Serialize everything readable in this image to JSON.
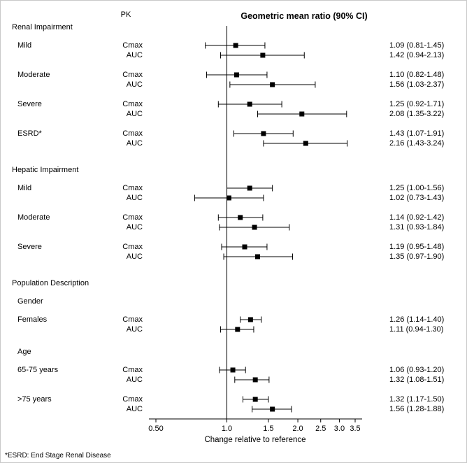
{
  "header": {
    "pk": "PK",
    "title": "Geometric mean ratio (90% CI)"
  },
  "footnote": "*ESRD: End Stage Renal Disease",
  "chart_data": {
    "type": "forest",
    "title": "Geometric mean ratio (90% CI)",
    "xlabel": "Change relative to reference",
    "x_scale": "log",
    "x_range": [
      0.45,
      3.8
    ],
    "reference_line": 1.0,
    "x_ticks": [
      0.5,
      1.0,
      1.5,
      2.0,
      2.5,
      3.0,
      3.5
    ],
    "x_tick_labels": [
      "0.50",
      "1.0",
      "1.5",
      "2.0",
      "2.5",
      "3.0",
      "3.5"
    ],
    "marker_color": "#000000",
    "sections": [
      {
        "name": "Renal Impairment",
        "groups": [
          {
            "label": "Mild",
            "rows": [
              {
                "pk": "Cmax",
                "est": 1.09,
                "lo": 0.81,
                "hi": 1.45,
                "text": "1.09 (0.81-1.45)"
              },
              {
                "pk": "AUC",
                "est": 1.42,
                "lo": 0.94,
                "hi": 2.13,
                "text": "1.42 (0.94-2.13)"
              }
            ]
          },
          {
            "label": "Moderate",
            "rows": [
              {
                "pk": "Cmax",
                "est": 1.1,
                "lo": 0.82,
                "hi": 1.48,
                "text": "1.10 (0.82-1.48)"
              },
              {
                "pk": "AUC",
                "est": 1.56,
                "lo": 1.03,
                "hi": 2.37,
                "text": "1.56 (1.03-2.37)"
              }
            ]
          },
          {
            "label": "Severe",
            "rows": [
              {
                "pk": "Cmax",
                "est": 1.25,
                "lo": 0.92,
                "hi": 1.71,
                "text": "1.25 (0.92-1.71)"
              },
              {
                "pk": "AUC",
                "est": 2.08,
                "lo": 1.35,
                "hi": 3.22,
                "text": "2.08 (1.35-3.22)"
              }
            ]
          },
          {
            "label": "ESRD*",
            "rows": [
              {
                "pk": "Cmax",
                "est": 1.43,
                "lo": 1.07,
                "hi": 1.91,
                "text": "1.43 (1.07-1.91)"
              },
              {
                "pk": "AUC",
                "est": 2.16,
                "lo": 1.43,
                "hi": 3.24,
                "text": "2.16 (1.43-3.24)"
              }
            ]
          }
        ]
      },
      {
        "name": "Hepatic Impairment",
        "groups": [
          {
            "label": "Mild",
            "rows": [
              {
                "pk": "Cmax",
                "est": 1.25,
                "lo": 1.0,
                "hi": 1.56,
                "text": "1.25 (1.00-1.56)"
              },
              {
                "pk": "AUC",
                "est": 1.02,
                "lo": 0.73,
                "hi": 1.43,
                "text": "1.02 (0.73-1.43)"
              }
            ]
          },
          {
            "label": "Moderate",
            "rows": [
              {
                "pk": "Cmax",
                "est": 1.14,
                "lo": 0.92,
                "hi": 1.42,
                "text": "1.14 (0.92-1.42)"
              },
              {
                "pk": "AUC",
                "est": 1.31,
                "lo": 0.93,
                "hi": 1.84,
                "text": "1.31 (0.93-1.84)"
              }
            ]
          },
          {
            "label": "Severe",
            "rows": [
              {
                "pk": "Cmax",
                "est": 1.19,
                "lo": 0.95,
                "hi": 1.48,
                "text": "1.19 (0.95-1.48)"
              },
              {
                "pk": "AUC",
                "est": 1.35,
                "lo": 0.97,
                "hi": 1.9,
                "text": "1.35 (0.97-1.90)"
              }
            ]
          }
        ]
      },
      {
        "name": "Population Description",
        "subsections": [
          {
            "name": "Gender",
            "groups": [
              {
                "label": "Females",
                "rows": [
                  {
                    "pk": "Cmax",
                    "est": 1.26,
                    "lo": 1.14,
                    "hi": 1.4,
                    "text": "1.26 (1.14-1.40)"
                  },
                  {
                    "pk": "AUC",
                    "est": 1.11,
                    "lo": 0.94,
                    "hi": 1.3,
                    "text": "1.11 (0.94-1.30)"
                  }
                ]
              }
            ]
          },
          {
            "name": "Age",
            "groups": [
              {
                "label": "65-75 years",
                "rows": [
                  {
                    "pk": "Cmax",
                    "est": 1.06,
                    "lo": 0.93,
                    "hi": 1.2,
                    "text": "1.06 (0.93-1.20)"
                  },
                  {
                    "pk": "AUC",
                    "est": 1.32,
                    "lo": 1.08,
                    "hi": 1.51,
                    "text": "1.32 (1.08-1.51)"
                  }
                ]
              },
              {
                "label": ">75 years",
                "rows": [
                  {
                    "pk": "Cmax",
                    "est": 1.32,
                    "lo": 1.17,
                    "hi": 1.5,
                    "text": "1.32 (1.17-1.50)"
                  },
                  {
                    "pk": "AUC",
                    "est": 1.56,
                    "lo": 1.28,
                    "hi": 1.88,
                    "text": "1.56 (1.28-1.88)"
                  }
                ]
              }
            ]
          }
        ]
      }
    ]
  }
}
